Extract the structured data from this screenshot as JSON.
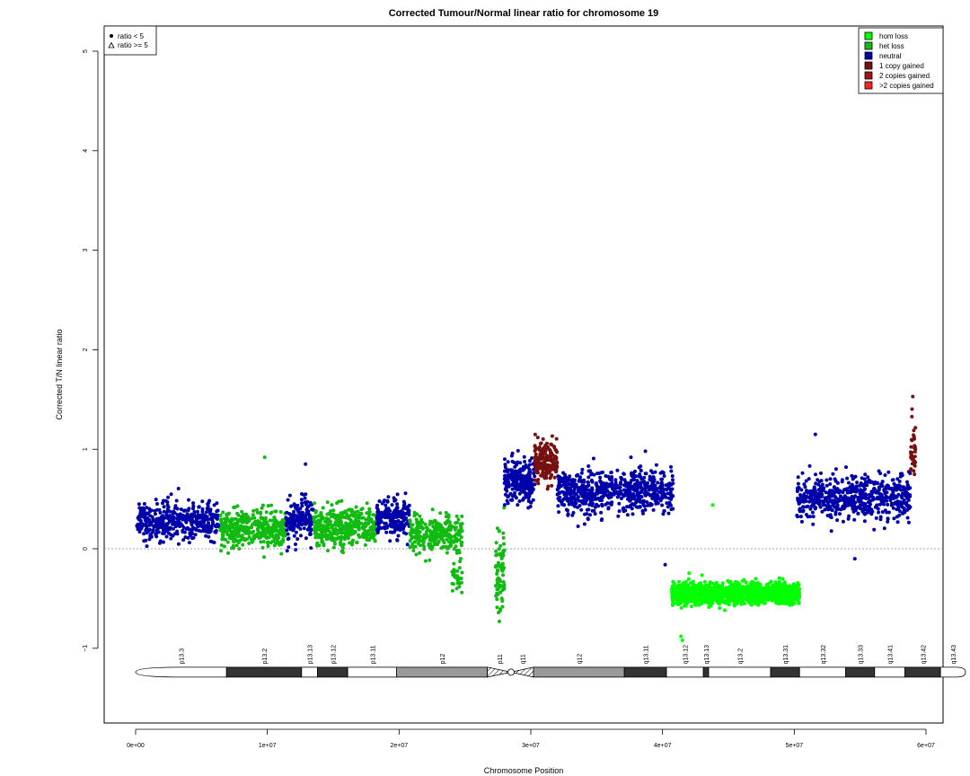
{
  "chart_data": {
    "type": "scatter",
    "title": "Corrected Tumour/Normal linear ratio for chromosome  19",
    "xlabel": "Chromosome Position",
    "ylabel": "Corrected T/N linear ratio",
    "xlim": [
      -1000000,
      61500000
    ],
    "ylim": [
      -1.75,
      5.3
    ],
    "x_ticks": [
      {
        "value": 0,
        "label": "0e+00"
      },
      {
        "value": 10000000,
        "label": "1e+07"
      },
      {
        "value": 20000000,
        "label": "2e+07"
      },
      {
        "value": 30000000,
        "label": "3e+07"
      },
      {
        "value": 40000000,
        "label": "4e+07"
      },
      {
        "value": 50000000,
        "label": "5e+07"
      },
      {
        "value": 60000000,
        "label": "6e+07"
      }
    ],
    "y_ticks": [
      {
        "value": -1,
        "label": "−1"
      },
      {
        "value": 0,
        "label": "0"
      },
      {
        "value": 1,
        "label": "1"
      },
      {
        "value": 2,
        "label": "2"
      },
      {
        "value": 3,
        "label": "3"
      },
      {
        "value": 4,
        "label": "4"
      },
      {
        "value": 5,
        "label": "5"
      }
    ],
    "reference_line": {
      "y": 0,
      "style": "dotted",
      "color": "#888888"
    },
    "grid": false,
    "legend_shapes": {
      "placement": "top-left",
      "entries": [
        {
          "label": "ratio < 5",
          "symbol": "filled-circle"
        },
        {
          "label": "ratio >= 5",
          "symbol": "open-triangle"
        }
      ]
    },
    "legend_states": {
      "placement": "top-right",
      "entries": [
        {
          "label": "hom loss",
          "color": "#00ff00"
        },
        {
          "label": "het loss",
          "color": "#11bb11"
        },
        {
          "label": "neutral",
          "color": "#0000aa"
        },
        {
          "label": "1 copy gained",
          "color": "#771111"
        },
        {
          "label": "2 copies gained",
          "color": "#aa1111"
        },
        {
          "label": ">2 copies gained",
          "color": "#ff2222"
        }
      ]
    },
    "segments": [
      {
        "state": "neutral",
        "x_start": 100000,
        "x_end": 6400000,
        "y_mean": 0.28,
        "spread": 0.17,
        "n": 400
      },
      {
        "state": "het loss",
        "x_start": 6400000,
        "x_end": 11400000,
        "y_mean": 0.2,
        "spread": 0.16,
        "n": 380
      },
      {
        "state": "neutral",
        "x_start": 11400000,
        "x_end": 13500000,
        "y_mean": 0.3,
        "spread": 0.17,
        "n": 160
      },
      {
        "state": "het loss",
        "x_start": 13500000,
        "x_end": 18300000,
        "y_mean": 0.22,
        "spread": 0.15,
        "n": 380
      },
      {
        "state": "neutral",
        "x_start": 18300000,
        "x_end": 20800000,
        "y_mean": 0.3,
        "spread": 0.16,
        "n": 180
      },
      {
        "state": "het loss",
        "x_start": 20800000,
        "x_end": 24800000,
        "y_mean": 0.15,
        "spread": 0.15,
        "n": 280
      },
      {
        "state": "het loss",
        "x_start": 24000000,
        "x_end": 24800000,
        "y_mean": -0.3,
        "spread": 0.12,
        "n": 30
      },
      {
        "state": "het loss",
        "x_start": 27300000,
        "x_end": 28000000,
        "y_mean": -0.25,
        "spread": 0.35,
        "n": 80
      },
      {
        "state": "neutral",
        "x_start": 28000000,
        "x_end": 30300000,
        "y_mean": 0.68,
        "spread": 0.18,
        "n": 250
      },
      {
        "state": "1 copy gained",
        "x_start": 30300000,
        "x_end": 32000000,
        "y_mean": 0.88,
        "spread": 0.16,
        "n": 180
      },
      {
        "state": "neutral",
        "x_start": 32000000,
        "x_end": 40800000,
        "y_mean": 0.58,
        "spread": 0.18,
        "n": 650
      },
      {
        "state": "hom loss",
        "x_start": 40700000,
        "x_end": 50400000,
        "y_mean": -0.45,
        "spread": 0.09,
        "n": 1300
      },
      {
        "state": "neutral",
        "x_start": 50200000,
        "x_end": 58800000,
        "y_mean": 0.52,
        "spread": 0.18,
        "n": 600
      },
      {
        "state": "1 copy gained",
        "x_start": 58800000,
        "x_end": 59200000,
        "y_mean": 0.95,
        "spread": 0.22,
        "n": 40
      }
    ],
    "outliers": [
      {
        "x": 9800000,
        "y": 0.92,
        "state": "het loss"
      },
      {
        "x": 12900000,
        "y": 0.85,
        "state": "neutral"
      },
      {
        "x": 43800000,
        "y": 0.44,
        "state": "hom loss"
      },
      {
        "x": 41400000,
        "y": -0.88,
        "state": "hom loss"
      },
      {
        "x": 41500000,
        "y": -0.92,
        "state": "hom loss"
      },
      {
        "x": 40200000,
        "y": -0.16,
        "state": "neutral"
      },
      {
        "x": 54600000,
        "y": -0.1,
        "state": "neutral"
      },
      {
        "x": 59000000,
        "y": 1.53,
        "state": "1 copy gained"
      },
      {
        "x": 38700000,
        "y": 0.98,
        "state": "neutral"
      },
      {
        "x": 51600000,
        "y": 1.15,
        "state": "neutral"
      }
    ],
    "ideogram": {
      "y_level": -1.24,
      "bands": [
        {
          "name": "p13.3",
          "start": 0,
          "end": 6900000,
          "stain": "white"
        },
        {
          "name": "p13.2",
          "start": 6900000,
          "end": 12600000,
          "stain": "black"
        },
        {
          "name": "p13.13",
          "start": 12600000,
          "end": 13800000,
          "stain": "white"
        },
        {
          "name": "p13.12",
          "start": 13800000,
          "end": 16100000,
          "stain": "black"
        },
        {
          "name": "p13.11",
          "start": 16100000,
          "end": 19800000,
          "stain": "white"
        },
        {
          "name": "p12",
          "start": 19800000,
          "end": 26700000,
          "stain": "grey"
        },
        {
          "name": "p11",
          "start": 26700000,
          "end": 28500000,
          "stain": "acen"
        },
        {
          "name": "q11",
          "start": 28500000,
          "end": 30200000,
          "stain": "acen"
        },
        {
          "name": "q12",
          "start": 30200000,
          "end": 37100000,
          "stain": "grey"
        },
        {
          "name": "q13.11",
          "start": 37100000,
          "end": 40300000,
          "stain": "black"
        },
        {
          "name": "q13.12",
          "start": 40300000,
          "end": 43100000,
          "stain": "white"
        },
        {
          "name": "q13.13",
          "start": 43100000,
          "end": 43500000,
          "stain": "black"
        },
        {
          "name": "q13.2",
          "start": 43500000,
          "end": 48200000,
          "stain": "white"
        },
        {
          "name": "q13.31",
          "start": 48200000,
          "end": 50400000,
          "stain": "black"
        },
        {
          "name": "q13.32",
          "start": 50400000,
          "end": 53900000,
          "stain": "white"
        },
        {
          "name": "q13.33",
          "start": 53900000,
          "end": 56100000,
          "stain": "black"
        },
        {
          "name": "q13.41",
          "start": 56100000,
          "end": 58400000,
          "stain": "white"
        },
        {
          "name": "q13.42",
          "start": 58400000,
          "end": 61100000,
          "stain": "black"
        },
        {
          "name": "q13.43",
          "start": 61100000,
          "end": 63000000,
          "stain": "white"
        }
      ]
    }
  }
}
